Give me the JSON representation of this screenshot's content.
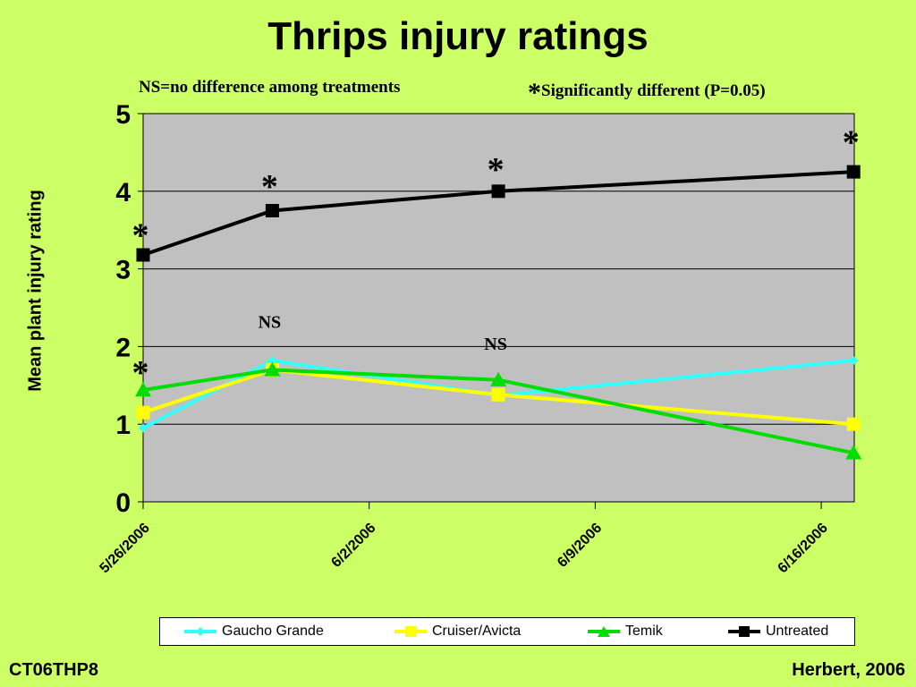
{
  "title": "Thrips injury ratings",
  "subtitle_left": "NS=no difference among treatments",
  "subtitle_right_symbol": "*",
  "subtitle_right_text": "Significantly different (P=0.05)",
  "footer_left": "CT06THP8",
  "footer_right": "Herbert, 2006",
  "background_color": "#ccff66",
  "plot_background_color": "#c0c0c0",
  "chart_data": {
    "type": "line",
    "ylabel": "Mean plant injury rating",
    "ylim": [
      0,
      5
    ],
    "yticks": [
      0,
      1,
      2,
      3,
      4,
      5
    ],
    "xtick_labels": [
      "5/26/2006",
      "6/2/2006",
      "6/9/2006",
      "6/16/2006"
    ],
    "x_range": [
      "5/26/2006",
      "6/17/2006"
    ],
    "grid": "horizontal",
    "legend_position": "bottom",
    "series": [
      {
        "name": "Gaucho Grande",
        "color": "#33ffff",
        "marker": "diamond",
        "points": [
          [
            "5/26/2006",
            0.95
          ],
          [
            "5/30/2006",
            1.82
          ],
          [
            "6/6/2006",
            1.37
          ],
          [
            "6/17/2006",
            1.82
          ]
        ]
      },
      {
        "name": "Cruiser/Avicta",
        "color": "#ffff00",
        "marker": "square",
        "points": [
          [
            "5/26/2006",
            1.15
          ],
          [
            "5/30/2006",
            1.7
          ],
          [
            "6/6/2006",
            1.38
          ],
          [
            "6/17/2006",
            1.0
          ]
        ]
      },
      {
        "name": "Temik",
        "color": "#00dd00",
        "marker": "triangle",
        "points": [
          [
            "5/26/2006",
            1.44
          ],
          [
            "5/30/2006",
            1.7
          ],
          [
            "6/6/2006",
            1.57
          ],
          [
            "6/17/2006",
            0.63
          ]
        ]
      },
      {
        "name": "Untreated",
        "color": "#000000",
        "marker": "square",
        "points": [
          [
            "5/26/2006",
            3.18
          ],
          [
            "5/30/2006",
            3.75
          ],
          [
            "6/6/2006",
            4.0
          ],
          [
            "6/17/2006",
            4.25
          ]
        ]
      }
    ],
    "annotations": [
      {
        "text": "*",
        "x": "5/26/2006",
        "y": 3.45
      },
      {
        "text": "*",
        "x": "5/30/2006",
        "y": 4.08
      },
      {
        "text": "*",
        "x": "6/6/2006",
        "y": 4.3
      },
      {
        "text": "*",
        "x": "6/17/2006",
        "y": 4.65
      },
      {
        "text": "*",
        "x": "5/26/2006",
        "y": 1.68
      },
      {
        "text": "NS",
        "x": "5/30/2006",
        "y": 2.24
      },
      {
        "text": "NS",
        "x": "6/6/2006",
        "y": 1.96
      }
    ]
  }
}
